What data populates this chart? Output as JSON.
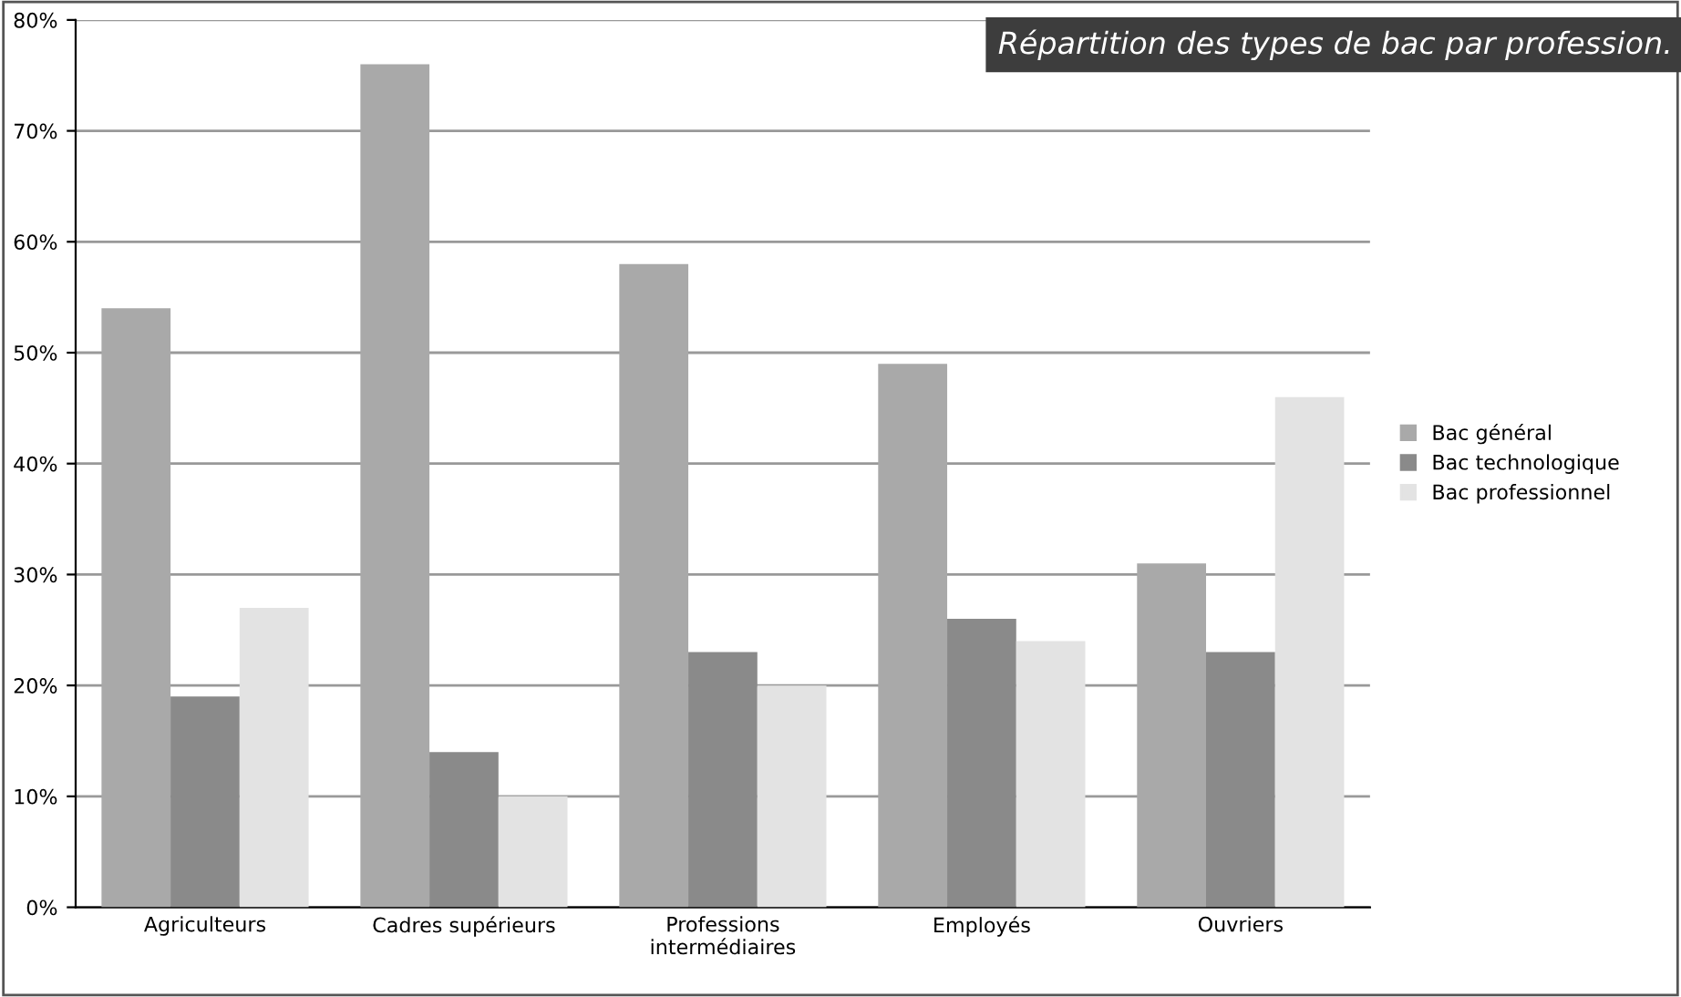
{
  "chart_data": {
    "type": "bar",
    "title": "Répartition des types de bac par profession.",
    "categories": [
      "Agriculteurs",
      "Cadres supérieurs",
      "Professions\nintermédiaires",
      "Employés",
      "Ouvriers"
    ],
    "series": [
      {
        "name": "Bac général",
        "color": "#a9a9a9",
        "values": [
          54,
          76,
          58,
          49,
          31
        ]
      },
      {
        "name": "Bac technologique",
        "color": "#8a8a8a",
        "values": [
          19,
          14,
          23,
          26,
          23
        ]
      },
      {
        "name": "Bac professionnel",
        "color": "#e3e3e3",
        "values": [
          27,
          10,
          20,
          24,
          46
        ]
      }
    ],
    "ylim": [
      0,
      80
    ],
    "yticks": [
      {
        "value": 0,
        "label": "0%"
      },
      {
        "value": 10,
        "label": "10%"
      },
      {
        "value": 20,
        "label": "20%"
      },
      {
        "value": 30,
        "label": "30%"
      },
      {
        "value": 40,
        "label": "40%"
      },
      {
        "value": 50,
        "label": "50%"
      },
      {
        "value": 60,
        "label": "60%"
      },
      {
        "value": 70,
        "label": "70%"
      },
      {
        "value": 80,
        "label": "80%"
      }
    ],
    "grid": "y",
    "legend": "right"
  }
}
